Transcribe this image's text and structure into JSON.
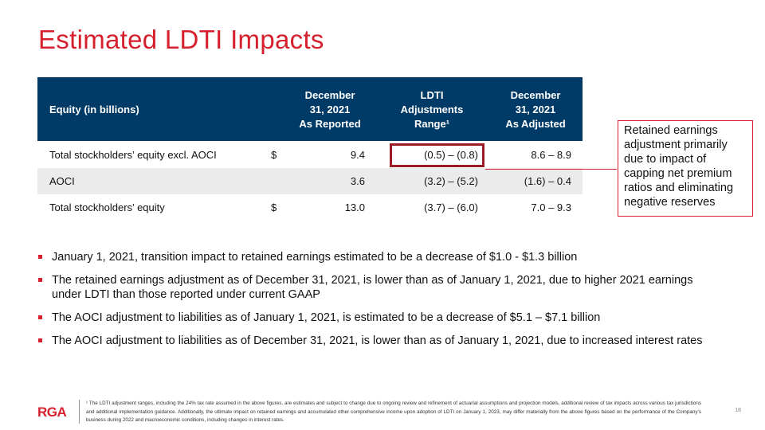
{
  "title": "Estimated LDTI Impacts",
  "table": {
    "headers": {
      "label": "Equity (in billions)",
      "reported": [
        "December",
        "31, 2021",
        "As Reported"
      ],
      "adjustments": [
        "LDTI",
        "Adjustments",
        "Range¹"
      ],
      "adjusted": [
        "December",
        "31, 2021",
        "As Adjusted"
      ]
    },
    "rows": [
      {
        "label": "Total stockholders’ equity excl. AOCI",
        "dollar": "$",
        "reported": "9.4",
        "adjustments": "(0.5) – (0.8)",
        "adjusted": "8.6 – 8.9"
      },
      {
        "label": "AOCI",
        "dollar": "",
        "reported": "3.6",
        "adjustments": "(3.2) – (5.2)",
        "adjusted": "(1.6) – 0.4"
      },
      {
        "label": "Total stockholders’ equity",
        "dollar": "$",
        "reported": "13.0",
        "adjustments": "(3.7) – (6.0)",
        "adjusted": "7.0 – 9.3"
      }
    ]
  },
  "callout": "Retained earnings adjustment primarily due to impact of capping net premium ratios and eliminating negative reserves",
  "bullets": [
    "January 1, 2021, transition impact to retained earnings estimated to be a decrease of $1.0 - $1.3 billion",
    "The retained earnings adjustment as of December 31, 2021, is lower than as of January 1, 2021, due to higher 2021 earnings under LDTI than those reported under current GAAP",
    "The AOCI adjustment to liabilities as of January 1, 2021, is estimated to be a decrease of $5.1 – $7.1 billion",
    "The AOCI adjustment to liabilities as of December 31, 2021, is lower than as of January 1, 2021, due to increased interest rates"
  ],
  "footer": {
    "logo": "RGA",
    "footnote": "¹ The LDTI adjustment ranges, including the 24% tax rate assumed in the above figures, are estimates and subject to change due to ongoing review and refinement of actuarial assumptions and projection models, additional review of tax impacts across various tax jurisdictions and additional implementation guidance. Additionally, the ultimate impact on retained earnings and accumulated other comprehensive income upon adoption of LDTI on January 1, 2023, may differ materially from the above figures based on the performance of the Company’s business during 2022 and macroeconomic conditions, including changes in interest rates.",
    "page_number": "18"
  },
  "colors": {
    "brand_red": "#d6202e",
    "header_navy": "#003a66",
    "box_red": "#9b1c24",
    "row_shade": "#ebebeb"
  }
}
